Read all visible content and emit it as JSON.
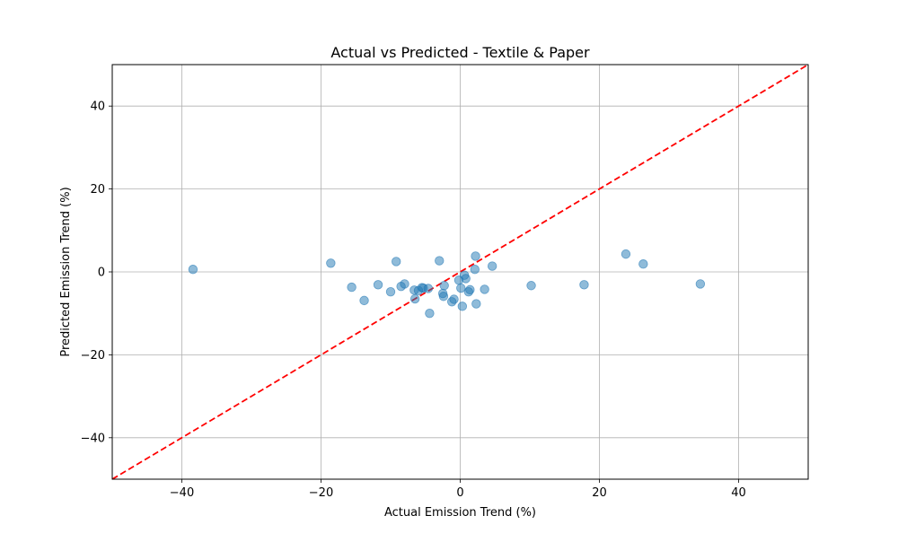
{
  "chart_data": {
    "type": "scatter",
    "title": "Actual vs Predicted - Textile & Paper",
    "xlabel": "Actual Emission Trend (%)",
    "ylabel": "Predicted Emission Trend (%)",
    "xlim": [
      -50,
      50
    ],
    "ylim": [
      -50,
      50
    ],
    "xticks": [
      -40,
      -20,
      0,
      20,
      40
    ],
    "yticks": [
      -40,
      -20,
      0,
      20,
      40
    ],
    "grid": true,
    "reference_line": {
      "x": [
        -50,
        50
      ],
      "y": [
        -50,
        50
      ],
      "style": "dashed",
      "color": "#ff0000"
    },
    "point_color": "#1f77b4",
    "points": [
      {
        "x": -38.4,
        "y": 0.6
      },
      {
        "x": -18.6,
        "y": 2.1
      },
      {
        "x": -15.6,
        "y": -3.7
      },
      {
        "x": -13.8,
        "y": -6.9
      },
      {
        "x": -11.8,
        "y": -3.1
      },
      {
        "x": -10.0,
        "y": -4.8
      },
      {
        "x": -9.2,
        "y": 2.5
      },
      {
        "x": -8.5,
        "y": -3.5
      },
      {
        "x": -8.0,
        "y": -2.9
      },
      {
        "x": -6.6,
        "y": -4.4
      },
      {
        "x": -6.5,
        "y": -6.5
      },
      {
        "x": -6.0,
        "y": -4.5
      },
      {
        "x": -5.5,
        "y": -3.8
      },
      {
        "x": -5.3,
        "y": -3.9
      },
      {
        "x": -4.6,
        "y": -4.0
      },
      {
        "x": -4.4,
        "y": -10.0
      },
      {
        "x": -3.0,
        "y": 2.7
      },
      {
        "x": -2.5,
        "y": -5.2
      },
      {
        "x": -2.4,
        "y": -5.9
      },
      {
        "x": -2.3,
        "y": -3.3
      },
      {
        "x": -1.2,
        "y": -7.2
      },
      {
        "x": -0.9,
        "y": -6.6
      },
      {
        "x": -0.2,
        "y": -2.0
      },
      {
        "x": 0.1,
        "y": -3.9
      },
      {
        "x": 0.3,
        "y": -8.3
      },
      {
        "x": 0.6,
        "y": -0.8
      },
      {
        "x": 0.8,
        "y": -1.6
      },
      {
        "x": 1.2,
        "y": -4.8
      },
      {
        "x": 1.4,
        "y": -4.3
      },
      {
        "x": 2.1,
        "y": 0.6
      },
      {
        "x": 2.2,
        "y": 3.8
      },
      {
        "x": 2.3,
        "y": -7.7
      },
      {
        "x": 3.5,
        "y": -4.2
      },
      {
        "x": 4.6,
        "y": 1.4
      },
      {
        "x": 10.2,
        "y": -3.3
      },
      {
        "x": 17.8,
        "y": -3.1
      },
      {
        "x": 23.8,
        "y": 4.3
      },
      {
        "x": 26.3,
        "y": 1.9
      },
      {
        "x": 34.5,
        "y": -2.9
      }
    ]
  }
}
